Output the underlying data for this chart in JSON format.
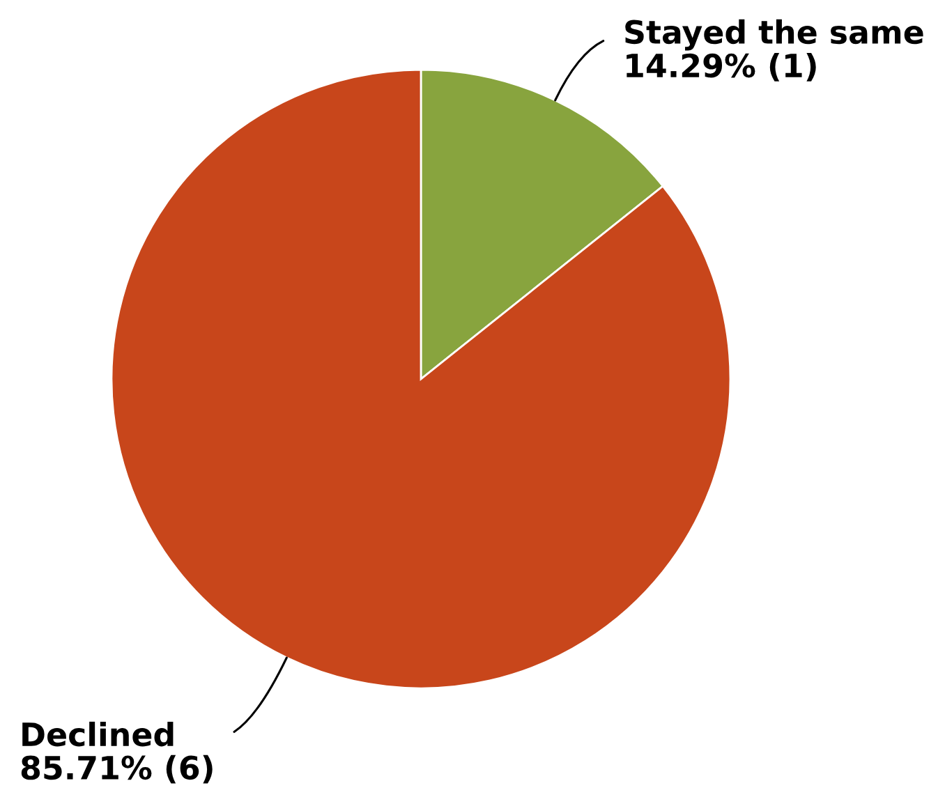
{
  "chart_data": {
    "type": "pie",
    "categories": [
      "Stayed the same",
      "Declined"
    ],
    "values": [
      1,
      6
    ],
    "colors": [
      "#88a43e",
      "#c8461b"
    ],
    "value_labels": [
      "14.29% (1)",
      "85.71% (6)"
    ]
  }
}
